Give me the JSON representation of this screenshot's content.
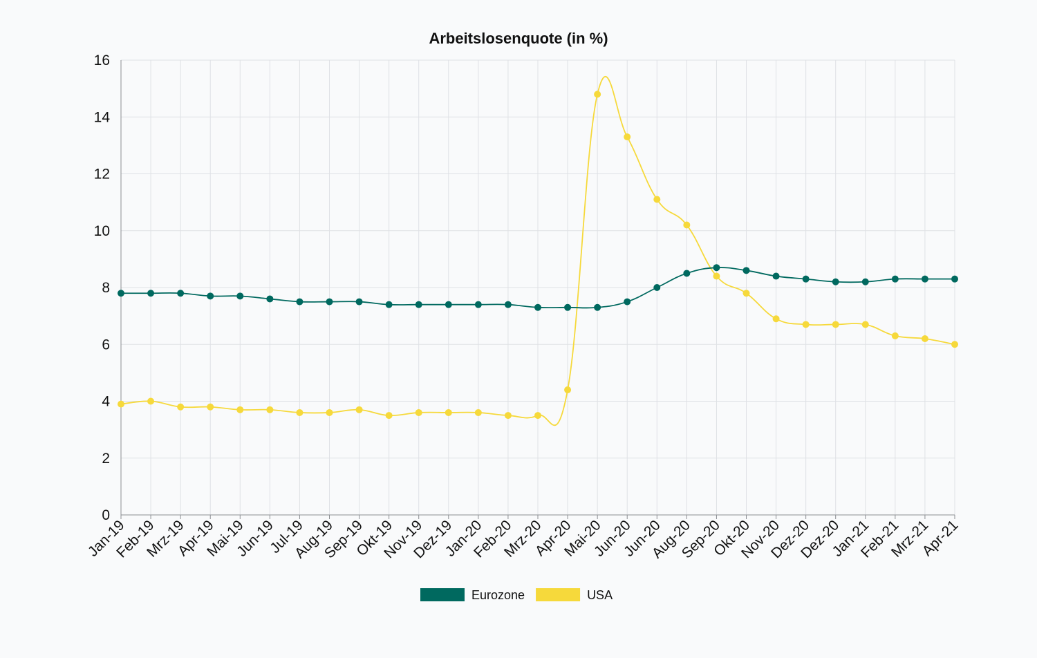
{
  "chart_data": {
    "type": "line",
    "title": "Arbeitslosenquote (in %)",
    "xlabel": "",
    "ylabel": "",
    "ylim": [
      0,
      16
    ],
    "yticks": [
      0,
      2,
      4,
      6,
      8,
      10,
      12,
      14,
      16
    ],
    "grid": true,
    "legend_position": "bottom-center",
    "categories": [
      "Jan-19",
      "Feb-19",
      "Mrz-19",
      "Apr-19",
      "Mai-19",
      "Jun-19",
      "Jul-19",
      "Aug-19",
      "Sep-19",
      "Okt-19",
      "Nov-19",
      "Dez-19",
      "Jan-20",
      "Feb-20",
      "Mrz-20",
      "Apr-20",
      "Mai-20",
      "Jun-20",
      "Jun-20",
      "Aug-20",
      "Sep-20",
      "Okt-20",
      "Nov-20",
      "Dez-20",
      "Dez-20",
      "Jan-21",
      "Feb-21",
      "Mrz-21",
      "Apr-21"
    ],
    "series": [
      {
        "name": "Eurozone",
        "color": "#00695f",
        "values": [
          7.8,
          7.8,
          7.8,
          7.7,
          7.7,
          7.6,
          7.5,
          7.5,
          7.5,
          7.4,
          7.4,
          7.4,
          7.4,
          7.4,
          7.3,
          7.3,
          7.3,
          7.5,
          8.0,
          8.5,
          8.7,
          8.6,
          8.4,
          8.3,
          8.2,
          8.2,
          8.3,
          8.3,
          8.3
        ]
      },
      {
        "name": "USA",
        "color": "#f6d93b",
        "values": [
          3.9,
          4.0,
          3.8,
          3.8,
          3.7,
          3.7,
          3.6,
          3.6,
          3.7,
          3.5,
          3.6,
          3.6,
          3.6,
          3.5,
          3.5,
          4.4,
          14.8,
          13.3,
          11.1,
          10.2,
          8.4,
          7.8,
          6.9,
          6.7,
          6.7,
          6.7,
          6.3,
          6.2,
          6.0
        ]
      }
    ]
  }
}
